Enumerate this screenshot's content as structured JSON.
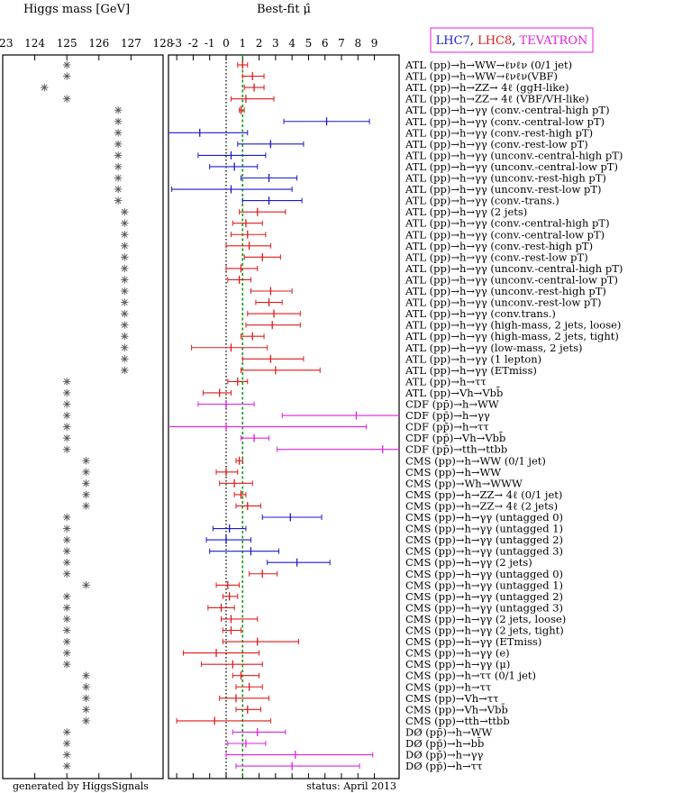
{
  "panel_titles": {
    "mass": "Higgs mass [GeV]",
    "mu": "Best-fit μ̂"
  },
  "legend": [
    {
      "label": "LHC7",
      "color": "#1a1ad0"
    },
    {
      "label": "LHC8",
      "color": "#e01a1a"
    },
    {
      "label": "TEVATRON",
      "color": "#e020e0"
    }
  ],
  "footer": {
    "generated": "generated by HiggsSignals",
    "status": "status: April 2013"
  },
  "colors": {
    "LHC7": "#1a1ad0",
    "LHC8": "#e01a1a",
    "TEVATRON": "#e020e0",
    "reference_line": "#169a16",
    "mass_marker": "#555555"
  },
  "chart_data": [
    {
      "type": "scatter",
      "title": "Higgs mass [GeV]",
      "xlim": [
        123,
        128
      ],
      "xticks": [
        "123",
        "124",
        "125",
        "126",
        "127",
        "128"
      ],
      "marker": "asterisk"
    },
    {
      "type": "scatter",
      "title": "Best-fit μ̂",
      "xlim": [
        -3.5,
        10.5
      ],
      "xticks": [
        "-3",
        "-2",
        "-1",
        "0",
        "1",
        "2",
        "3",
        "4",
        "5",
        "6",
        "7",
        "8",
        "9"
      ],
      "reference_lines": [
        0,
        1
      ],
      "points": [
        {
          "label": "ATL (pp)→h→WW→ℓνℓν (0/1 jet)",
          "collider": "LHC8",
          "mass": 125.0,
          "mu": 1.0,
          "lo": 0.7,
          "hi": 1.3
        },
        {
          "label": "ATL (pp)→h→WW→ℓνℓν(VBF)",
          "collider": "LHC8",
          "mass": 125.0,
          "mu": 1.6,
          "lo": 1.0,
          "hi": 2.3
        },
        {
          "label": "ATL (pp)→h→ZZ→ 4ℓ (ggH-like)",
          "collider": "LHC8",
          "mass": 124.3,
          "mu": 1.7,
          "lo": 1.1,
          "hi": 2.3
        },
        {
          "label": "ATL (pp)→h→ZZ→ 4ℓ (VBF/VH-like)",
          "collider": "LHC8",
          "mass": 125.0,
          "mu": 1.2,
          "lo": 0.3,
          "hi": 2.9
        },
        {
          "label": "ATL (pp)→h→γγ (conv.-central-high pT)",
          "collider": "LHC8",
          "mass": 126.6,
          "mu": 0.9,
          "lo": 0.8,
          "hi": 1.1
        },
        {
          "label": "ATL (pp)→h→γγ (conv.-central-low pT)",
          "collider": "LHC7",
          "mass": 126.6,
          "mu": 6.1,
          "lo": 3.5,
          "hi": 8.7
        },
        {
          "label": "ATL (pp)→h→γγ (conv.-rest-high pT)",
          "collider": "LHC7",
          "mass": 126.6,
          "mu": -1.6,
          "lo": -4.5,
          "hi": 1.3
        },
        {
          "label": "ATL (pp)→h→γγ (conv.-rest-low pT)",
          "collider": "LHC7",
          "mass": 126.6,
          "mu": 2.7,
          "lo": 0.7,
          "hi": 4.7
        },
        {
          "label": "ATL (pp)→h→γγ (unconv.-central-high pT)",
          "collider": "LHC7",
          "mass": 126.6,
          "mu": 0.3,
          "lo": -1.7,
          "hi": 2.4
        },
        {
          "label": "ATL (pp)→h→γγ (unconv.-central-low pT)",
          "collider": "LHC7",
          "mass": 126.6,
          "mu": 0.5,
          "lo": -1.0,
          "hi": 1.9
        },
        {
          "label": "ATL (pp)→h→γγ (unconv.-rest-high pT)",
          "collider": "LHC7",
          "mass": 126.6,
          "mu": 2.6,
          "lo": 0.9,
          "hi": 4.3
        },
        {
          "label": "ATL (pp)→h→γγ (unconv.-rest-low pT)",
          "collider": "LHC7",
          "mass": 126.6,
          "mu": 0.3,
          "lo": -3.3,
          "hi": 4.0
        },
        {
          "label": "ATL (pp)→h→γγ (conv.-trans.)",
          "collider": "LHC7",
          "mass": 126.6,
          "mu": 2.6,
          "lo": 1.0,
          "hi": 4.6
        },
        {
          "label": "ATL (pp)→h→γγ (2 jets)",
          "collider": "LHC8",
          "mass": 126.8,
          "mu": 1.9,
          "lo": 0.8,
          "hi": 3.6
        },
        {
          "label": "ATL (pp)→h→γγ (conv.-central-high pT)",
          "collider": "LHC8",
          "mass": 126.8,
          "mu": 1.2,
          "lo": 0.4,
          "hi": 2.2
        },
        {
          "label": "ATL (pp)→h→γγ (conv.-central-low pT)",
          "collider": "LHC8",
          "mass": 126.8,
          "mu": 1.3,
          "lo": 0.3,
          "hi": 2.4
        },
        {
          "label": "ATL (pp)→h→γγ (conv.-rest-high pT)",
          "collider": "LHC8",
          "mass": 126.8,
          "mu": 1.4,
          "lo": 0.0,
          "hi": 2.7
        },
        {
          "label": "ATL (pp)→h→γγ (conv.-rest-low pT)",
          "collider": "LHC8",
          "mass": 126.8,
          "mu": 2.2,
          "lo": 1.1,
          "hi": 3.3
        },
        {
          "label": "ATL (pp)→h→γγ (unconv.-central-high pT)",
          "collider": "LHC8",
          "mass": 126.8,
          "mu": 0.9,
          "lo": 0.0,
          "hi": 1.9
        },
        {
          "label": "ATL (pp)→h→γγ (unconv.-central-low pT)",
          "collider": "LHC8",
          "mass": 126.8,
          "mu": 0.8,
          "lo": 0.1,
          "hi": 1.5
        },
        {
          "label": "ATL (pp)→h→γγ (unconv.-rest-high pT)",
          "collider": "LHC8",
          "mass": 126.8,
          "mu": 2.7,
          "lo": 1.5,
          "hi": 4.0
        },
        {
          "label": "ATL (pp)→h→γγ (unconv.-rest-low pT)",
          "collider": "LHC8",
          "mass": 126.8,
          "mu": 2.6,
          "lo": 1.8,
          "hi": 3.4
        },
        {
          "label": "ATL (pp)→h→γγ (conv.trans.)",
          "collider": "LHC8",
          "mass": 126.8,
          "mu": 2.9,
          "lo": 1.3,
          "hi": 4.5
        },
        {
          "label": "ATL (pp)→h→γγ (high-mass, 2 jets, loose)",
          "collider": "LHC8",
          "mass": 126.8,
          "mu": 2.8,
          "lo": 1.2,
          "hi": 4.5
        },
        {
          "label": "ATL (pp)→h→γγ (high-mass, 2 jets, tight)",
          "collider": "LHC8",
          "mass": 126.8,
          "mu": 1.6,
          "lo": 0.9,
          "hi": 2.3
        },
        {
          "label": "ATL (pp)→h→γγ (low-mass, 2 jets)",
          "collider": "LHC8",
          "mass": 126.8,
          "mu": 0.3,
          "lo": -2.1,
          "hi": 2.5
        },
        {
          "label": "ATL (pp)→h→γγ (1 lepton)",
          "collider": "LHC8",
          "mass": 126.8,
          "mu": 2.7,
          "lo": 1.0,
          "hi": 4.7
        },
        {
          "label": "ATL (pp)→h→γγ (ETmiss)",
          "collider": "LHC8",
          "mass": 126.8,
          "mu": 3.0,
          "lo": 0.9,
          "hi": 5.7
        },
        {
          "label": "ATL (pp)→h→ττ",
          "collider": "LHC8",
          "mass": 125.0,
          "mu": 0.7,
          "lo": 0.1,
          "hi": 1.3
        },
        {
          "label": "ATL (pp)→Vh→Vbb̄",
          "collider": "LHC8",
          "mass": 125.0,
          "mu": -0.4,
          "lo": -1.4,
          "hi": 0.3
        },
        {
          "label": "CDF (pp̄)→h→WW",
          "collider": "TEVATRON",
          "mass": 125.0,
          "mu": 0.0,
          "lo": -1.7,
          "hi": 1.7
        },
        {
          "label": "CDF (pp̄)→h→γγ",
          "collider": "TEVATRON",
          "mass": 125.0,
          "mu": 7.9,
          "lo": 3.4,
          "hi": 12.4
        },
        {
          "label": "CDF (pp̄)→h→ττ",
          "collider": "TEVATRON",
          "mass": 125.0,
          "mu": 0.0,
          "lo": -6.0,
          "hi": 8.5
        },
        {
          "label": "CDF (pp̄)→Vh→Vbb̄",
          "collider": "TEVATRON",
          "mass": 125.0,
          "mu": 1.7,
          "lo": 0.9,
          "hi": 2.6
        },
        {
          "label": "CDF (pp̄)→tth→ttbb",
          "collider": "TEVATRON",
          "mass": 125.0,
          "mu": 9.5,
          "lo": 3.1,
          "hi": 15.9
        },
        {
          "label": "CMS (pp)→h→WW (0/1 jet)",
          "collider": "LHC8",
          "mass": 125.6,
          "mu": 0.8,
          "lo": 0.6,
          "hi": 1.0
        },
        {
          "label": "CMS (pp)→h→WW",
          "collider": "LHC8",
          "mass": 125.6,
          "mu": 0.0,
          "lo": -0.6,
          "hi": 0.7
        },
        {
          "label": "CMS (pp)→Wh→WWW",
          "collider": "LHC8",
          "mass": 125.6,
          "mu": 0.5,
          "lo": -0.4,
          "hi": 1.6
        },
        {
          "label": "CMS (pp)→h→ZZ→ 4ℓ (0/1 jet)",
          "collider": "LHC8",
          "mass": 125.6,
          "mu": 0.9,
          "lo": 0.5,
          "hi": 1.2
        },
        {
          "label": "CMS (pp)→h→ZZ→ 4ℓ (2 jets)",
          "collider": "LHC8",
          "mass": 125.6,
          "mu": 1.3,
          "lo": 0.6,
          "hi": 2.1
        },
        {
          "label": "CMS (pp)→h→γγ (untagged 0)",
          "collider": "LHC7",
          "mass": 125.0,
          "mu": 3.9,
          "lo": 2.2,
          "hi": 5.8
        },
        {
          "label": "CMS (pp)→h→γγ (untagged 1)",
          "collider": "LHC7",
          "mass": 125.0,
          "mu": 0.2,
          "lo": -0.8,
          "hi": 1.2
        },
        {
          "label": "CMS (pp)→h→γγ (untagged 2)",
          "collider": "LHC7",
          "mass": 125.0,
          "mu": 0.0,
          "lo": -1.2,
          "hi": 1.5
        },
        {
          "label": "CMS (pp)→h→γγ (untagged 3)",
          "collider": "LHC7",
          "mass": 125.0,
          "mu": 1.5,
          "lo": -1.0,
          "hi": 3.2
        },
        {
          "label": "CMS (pp)→h→γγ (2 jets)",
          "collider": "LHC7",
          "mass": 125.0,
          "mu": 4.3,
          "lo": 2.5,
          "hi": 6.3
        },
        {
          "label": "CMS (pp)→h→γγ (untagged 0)",
          "collider": "LHC8",
          "mass": 125.0,
          "mu": 2.2,
          "lo": 1.4,
          "hi": 3.1
        },
        {
          "label": "CMS (pp)→h→γγ (untagged 1)",
          "collider": "LHC8",
          "mass": 125.6,
          "mu": 0.1,
          "lo": -0.6,
          "hi": 0.8
        },
        {
          "label": "CMS (pp)→h→γγ (untagged 2)",
          "collider": "LHC8",
          "mass": 125.0,
          "mu": 0.2,
          "lo": -0.2,
          "hi": 0.7
        },
        {
          "label": "CMS (pp)→h→γγ (untagged 3)",
          "collider": "LHC8",
          "mass": 125.0,
          "mu": -0.3,
          "lo": -1.1,
          "hi": 0.5
        },
        {
          "label": "CMS (pp)→h→γγ (2 jets, loose)",
          "collider": "LHC8",
          "mass": 125.0,
          "mu": 0.3,
          "lo": -0.3,
          "hi": 1.9
        },
        {
          "label": "CMS (pp)→h→γγ (2 jets, tight)",
          "collider": "LHC8",
          "mass": 125.0,
          "mu": 0.3,
          "lo": -0.2,
          "hi": 0.9
        },
        {
          "label": "CMS (pp)→h→γγ (ETmiss)",
          "collider": "LHC8",
          "mass": 125.0,
          "mu": 1.9,
          "lo": -0.2,
          "hi": 4.4
        },
        {
          "label": "CMS (pp)→h→γγ (e)",
          "collider": "LHC8",
          "mass": 125.0,
          "mu": -0.6,
          "lo": -2.6,
          "hi": 2.0
        },
        {
          "label": "CMS (pp)→h→γγ (μ)",
          "collider": "LHC8",
          "mass": 125.0,
          "mu": 0.4,
          "lo": -1.5,
          "hi": 2.2
        },
        {
          "label": "CMS (pp)→h→ττ (0/1 jet)",
          "collider": "LHC8",
          "mass": 125.6,
          "mu": 0.9,
          "lo": 0.4,
          "hi": 2.0
        },
        {
          "label": "CMS (pp)→h→ττ",
          "collider": "LHC8",
          "mass": 125.6,
          "mu": 1.4,
          "lo": 0.6,
          "hi": 2.2
        },
        {
          "label": "CMS (pp)→Vh→ττ",
          "collider": "LHC8",
          "mass": 125.6,
          "mu": 0.6,
          "lo": -0.4,
          "hi": 2.6
        },
        {
          "label": "CMS (pp)→Vh→Vbb̄",
          "collider": "LHC8",
          "mass": 125.6,
          "mu": 1.3,
          "lo": 0.6,
          "hi": 2.1
        },
        {
          "label": "CMS (pp)→tth→ttbb",
          "collider": "LHC8",
          "mass": 125.6,
          "mu": -0.7,
          "lo": -3.0,
          "hi": 2.7
        },
        {
          "label": "DØ (pp̄)→h→WW",
          "collider": "TEVATRON",
          "mass": 125.0,
          "mu": 1.9,
          "lo": 0.4,
          "hi": 3.6
        },
        {
          "label": "DØ (pp̄)→h→bb̄",
          "collider": "TEVATRON",
          "mass": 125.0,
          "mu": 1.2,
          "lo": 0.1,
          "hi": 2.4
        },
        {
          "label": "DØ (pp̄)→h→γγ",
          "collider": "TEVATRON",
          "mass": 125.0,
          "mu": 4.2,
          "lo": 0.0,
          "hi": 8.9
        },
        {
          "label": "DØ (pp̄)→h→ττ",
          "collider": "TEVATRON",
          "mass": 125.0,
          "mu": 4.0,
          "lo": 0.6,
          "hi": 8.1
        }
      ]
    }
  ]
}
